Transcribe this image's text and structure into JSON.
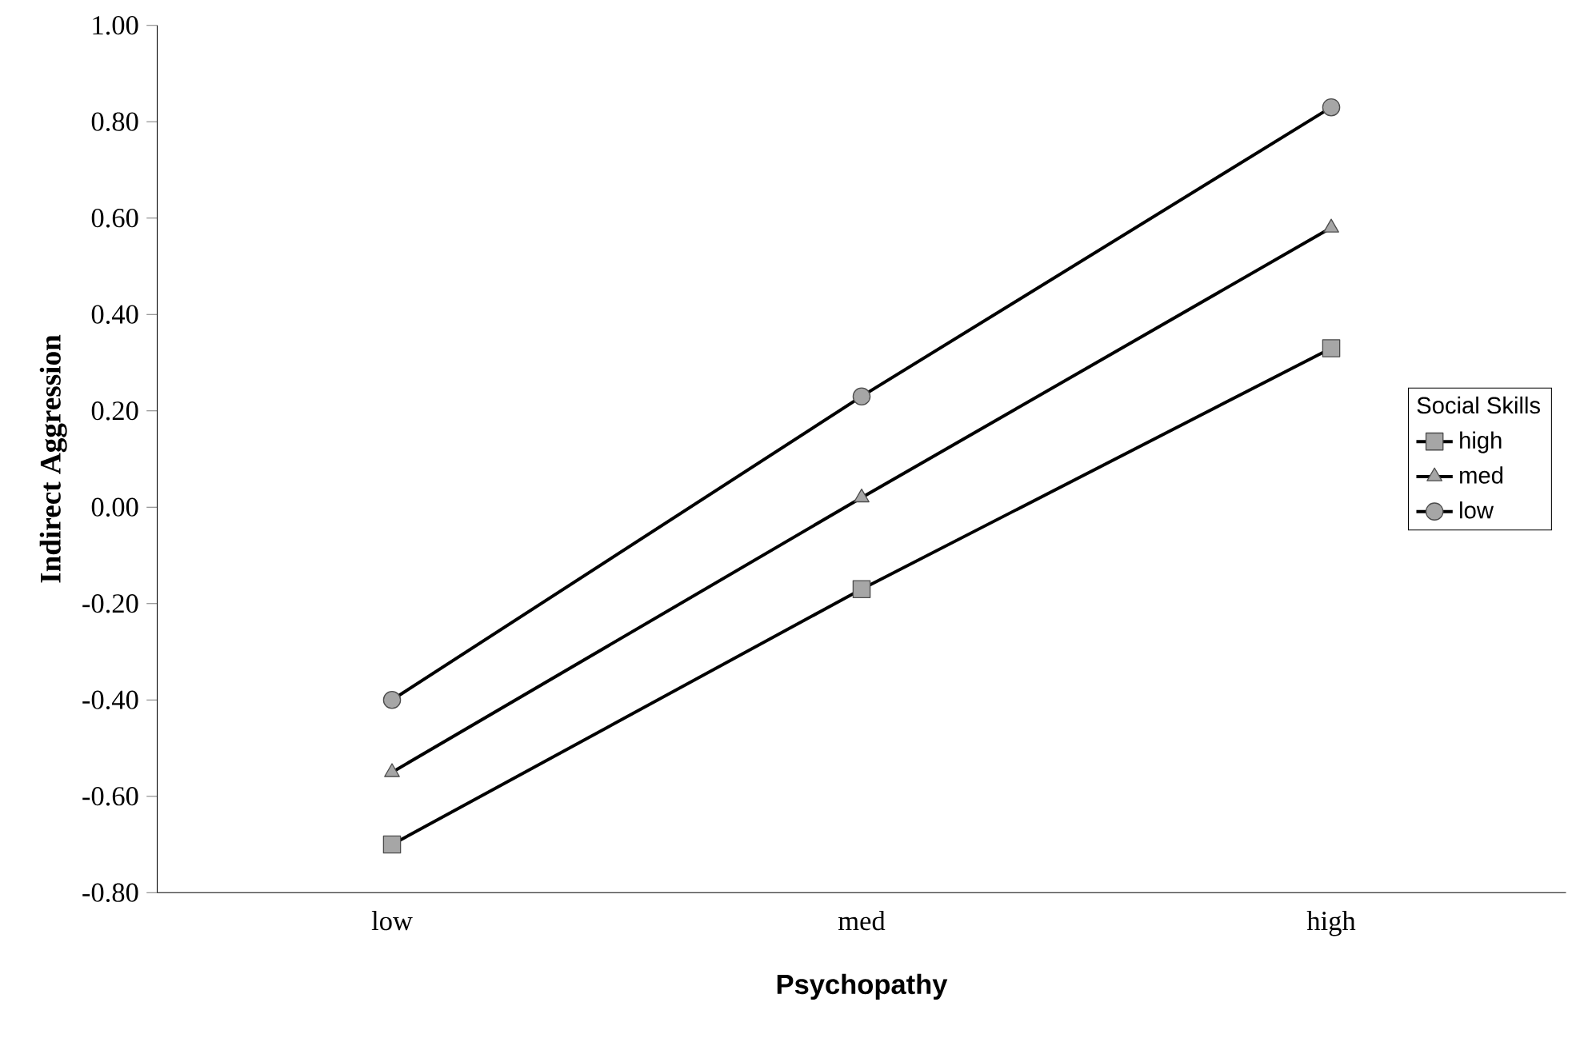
{
  "chart_data": {
    "type": "line",
    "xlabel": "Psychopathy",
    "ylabel": "Indirect Aggression",
    "legend_title": "Social Skills",
    "legend": "right",
    "grid": false,
    "categories": [
      "low",
      "med",
      "high"
    ],
    "ylim": [
      -0.8,
      1.0
    ],
    "yticks": [
      {
        "value": -0.8,
        "label": "-0.80"
      },
      {
        "value": -0.6,
        "label": "-0.60"
      },
      {
        "value": -0.4,
        "label": "-0.40"
      },
      {
        "value": -0.2,
        "label": "-0.20"
      },
      {
        "value": 0,
        "label": "0.00"
      },
      {
        "value": 0.2,
        "label": "0.20"
      },
      {
        "value": 0.4,
        "label": "0.40"
      },
      {
        "value": 0.6,
        "label": "0.60"
      },
      {
        "value": 0.8,
        "label": "0.80"
      },
      {
        "value": 1.0,
        "label": "1.00"
      }
    ],
    "series": [
      {
        "name": "high",
        "color": "#000000",
        "marker": "square",
        "values": [
          -0.7,
          -0.17,
          0.33
        ]
      },
      {
        "name": "med",
        "color": "#000000",
        "marker": "triangle",
        "values": [
          -0.55,
          0.02,
          0.58
        ]
      },
      {
        "name": "low",
        "color": "#000000",
        "marker": "circle",
        "values": [
          -0.4,
          0.23,
          0.83
        ]
      }
    ]
  }
}
